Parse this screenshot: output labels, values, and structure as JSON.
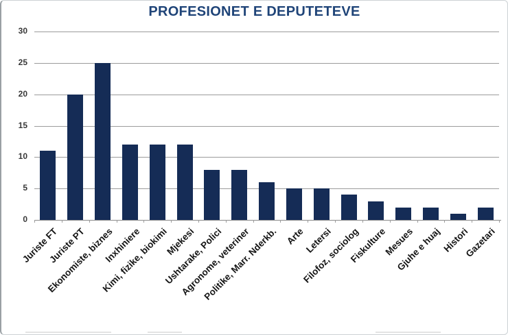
{
  "chart_data": {
    "type": "bar",
    "title": "PROFESIONET E DEPUTETEVE",
    "categories": [
      "Juriste FT",
      "Juriste PT",
      "Ekonomiste, biznes",
      "Inxhiniere",
      "Kimi, fizike, biokimi",
      "Mjekesi",
      "Ushtarake, Polici",
      "Agronome, veteriner",
      "Politike, Marr. Nderkb.",
      "Arte",
      "Letersi",
      "Filofoz, sociolog",
      "Fiskulture",
      "Mesues",
      "Gjuhe e huaj",
      "Histori",
      "Gazetari"
    ],
    "values": [
      11,
      20,
      25,
      12,
      12,
      12,
      8,
      8,
      6,
      5,
      5,
      4,
      3,
      2,
      2,
      1,
      2
    ],
    "xlabel": "",
    "ylabel": "",
    "ylim": [
      0,
      30
    ],
    "yticks": [
      0,
      5,
      10,
      15,
      20,
      25,
      30
    ],
    "grid": true,
    "legend": false,
    "colors": {
      "bar": "#152C56",
      "title": "#1F4478",
      "gridline": "#9B9B9B",
      "axis_line": "#8A8A8A",
      "x_tick_label": "#141414",
      "y_tick_label": "#383838"
    }
  }
}
